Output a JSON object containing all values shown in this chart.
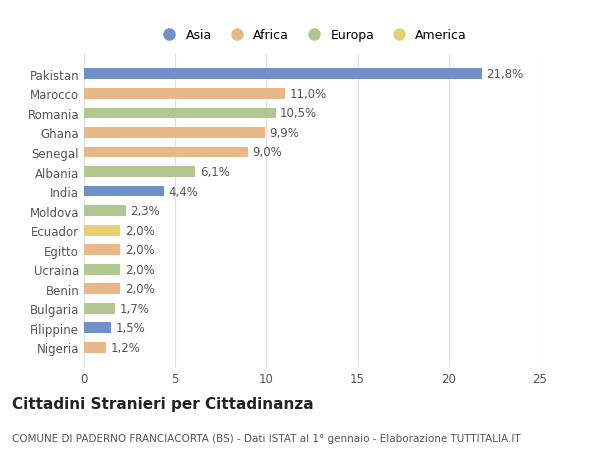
{
  "countries": [
    "Pakistan",
    "Marocco",
    "Romania",
    "Ghana",
    "Senegal",
    "Albania",
    "India",
    "Moldova",
    "Ecuador",
    "Egitto",
    "Ucraina",
    "Benin",
    "Bulgaria",
    "Filippine",
    "Nigeria"
  ],
  "values": [
    21.8,
    11.0,
    10.5,
    9.9,
    9.0,
    6.1,
    4.4,
    2.3,
    2.0,
    2.0,
    2.0,
    2.0,
    1.7,
    1.5,
    1.2
  ],
  "labels": [
    "21,8%",
    "11,0%",
    "10,5%",
    "9,9%",
    "9,0%",
    "6,1%",
    "4,4%",
    "2,3%",
    "2,0%",
    "2,0%",
    "2,0%",
    "2,0%",
    "1,7%",
    "1,5%",
    "1,2%"
  ],
  "continents": [
    "Asia",
    "Africa",
    "Europa",
    "Africa",
    "Africa",
    "Europa",
    "Asia",
    "Europa",
    "America",
    "Africa",
    "Europa",
    "Africa",
    "Europa",
    "Asia",
    "Africa"
  ],
  "colors": {
    "Asia": "#7090c8",
    "Africa": "#e8b888",
    "Europa": "#b0c890",
    "America": "#e8d070"
  },
  "legend_order": [
    "Asia",
    "Africa",
    "Europa",
    "America"
  ],
  "title": "Cittadini Stranieri per Cittadinanza",
  "subtitle": "COMUNE DI PADERNO FRANCIACORTA (BS) - Dati ISTAT al 1° gennaio - Elaborazione TUTTITALIA.IT",
  "xlim": [
    0,
    25
  ],
  "xticks": [
    0,
    5,
    10,
    15,
    20,
    25
  ],
  "background_color": "#ffffff",
  "grid_color": "#e0e0e0",
  "bar_height": 0.55,
  "label_fontsize": 8.5,
  "tick_fontsize": 8.5,
  "title_fontsize": 11,
  "subtitle_fontsize": 7.5
}
